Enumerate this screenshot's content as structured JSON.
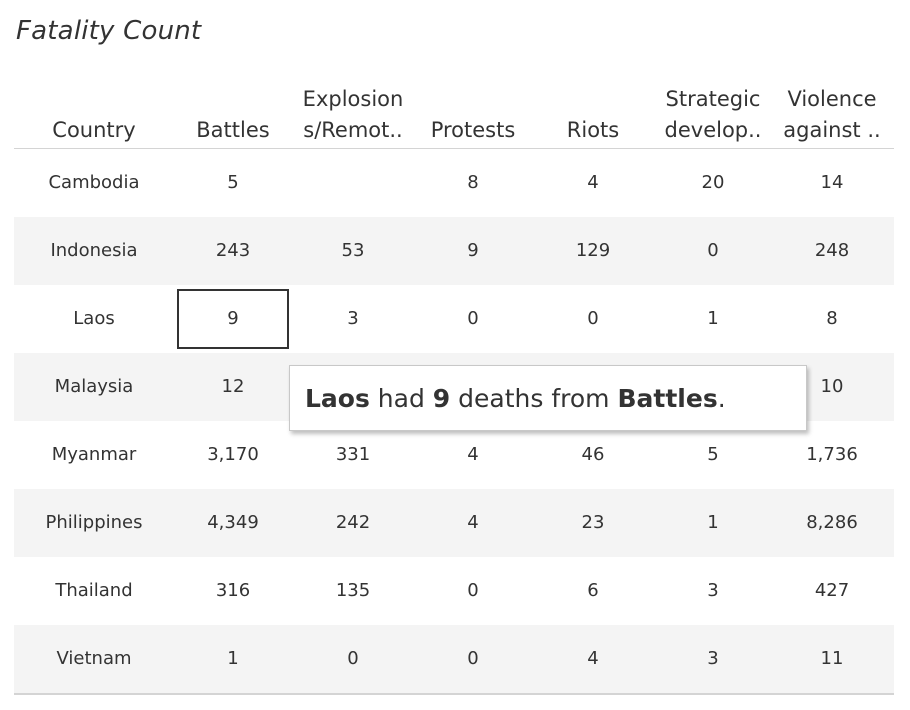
{
  "chart_data": {
    "type": "table",
    "title": "Fatality Count",
    "columns": [
      "Country",
      "Battles",
      "Explosion s/Remot..",
      "Protests",
      "Riots",
      "Strategic develop..",
      "Violence against .."
    ],
    "column_lines": [
      [
        "Country"
      ],
      [
        "Battles"
      ],
      [
        "Explosion",
        "s/Remot.."
      ],
      [
        "Protests"
      ],
      [
        "Riots"
      ],
      [
        "Strategic",
        "develop.."
      ],
      [
        "Violence",
        "against .."
      ]
    ],
    "rows": [
      {
        "country": "Cambodia",
        "values": [
          "5",
          "",
          "8",
          "4",
          "20",
          "14"
        ]
      },
      {
        "country": "Indonesia",
        "values": [
          "243",
          "53",
          "9",
          "129",
          "0",
          "248"
        ]
      },
      {
        "country": "Laos",
        "values": [
          "9",
          "3",
          "0",
          "0",
          "1",
          "8"
        ]
      },
      {
        "country": "Malaysia",
        "values": [
          "12",
          "",
          "",
          "",
          "",
          "10"
        ]
      },
      {
        "country": "Myanmar",
        "values": [
          "3,170",
          "331",
          "4",
          "46",
          "5",
          "1,736"
        ]
      },
      {
        "country": "Philippines",
        "values": [
          "4,349",
          "242",
          "4",
          "23",
          "1",
          "8,286"
        ]
      },
      {
        "country": "Thailand",
        "values": [
          "316",
          "135",
          "0",
          "6",
          "3",
          "427"
        ]
      },
      {
        "country": "Vietnam",
        "values": [
          "1",
          "0",
          "0",
          "4",
          "3",
          "11"
        ]
      }
    ],
    "selected": {
      "row": 2,
      "column": 1
    }
  },
  "tooltip": {
    "country": "Laos",
    "text1": " had ",
    "count": "9",
    "text2": " deaths from ",
    "event": "Battles",
    "text3": "."
  }
}
